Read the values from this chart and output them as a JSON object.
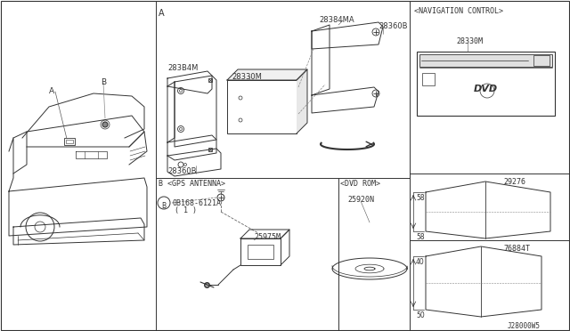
{
  "bg_color": "#ffffff",
  "text_color": "#333333",
  "diagram_id": "J28000W5",
  "parts": {
    "nav_control_label": "<NAVIGATION CONTROL>",
    "nav_part": "28330M",
    "gps_antenna_label": "B <GPS ANTENNA>",
    "gps_bolt": "0B168-6121A",
    "gps_bolt_sub": "( 1 )",
    "gps_part": "25975M",
    "dvd_rom_label": "<DVD ROM>",
    "dvd_part": "25920N",
    "part_a_bracket": "28384MA",
    "part_b_bracket": "28360B",
    "part_c": "28330M",
    "part_d": "283B4M",
    "part_e": "28360B",
    "part_29276": "29276",
    "part_76884T": "76884T",
    "dim_58_top": "58",
    "dim_58_bot": "58",
    "dim_40": "40",
    "dim_50": "50",
    "label_A": "A",
    "label_B": "B",
    "section_A": "A"
  }
}
